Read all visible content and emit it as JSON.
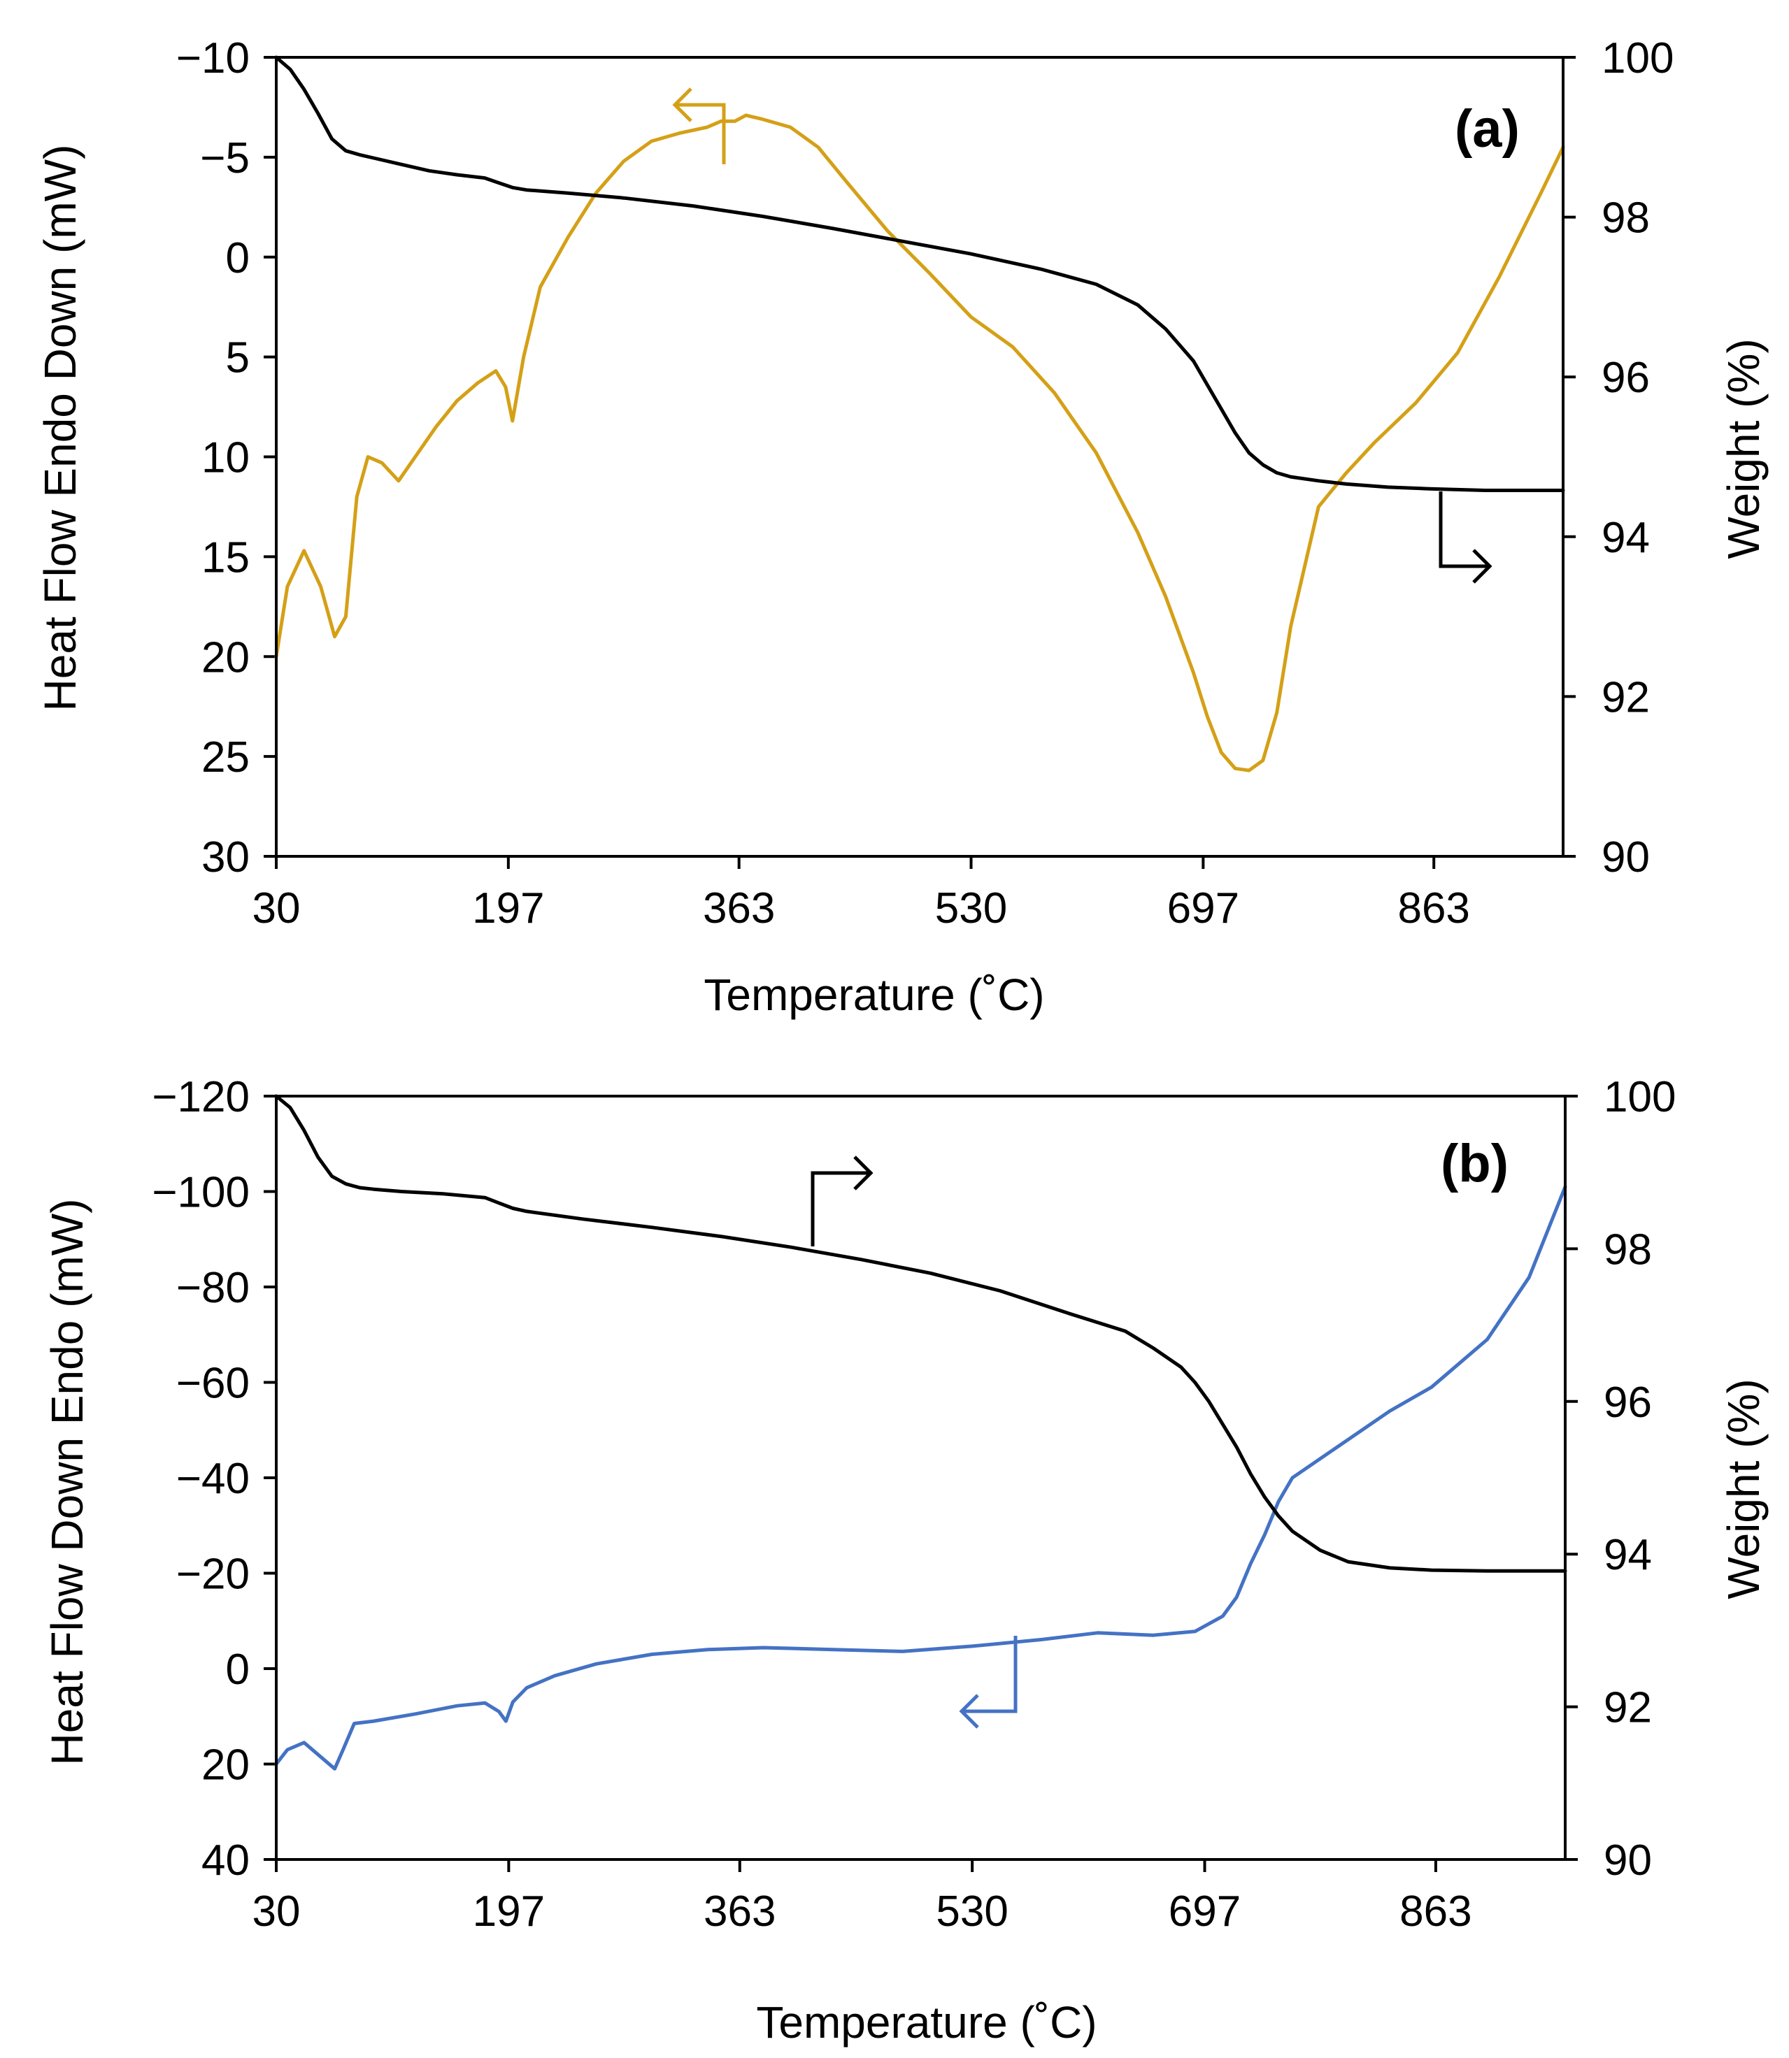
{
  "chart_data": [
    {
      "type": "line",
      "panel_label": "(a)",
      "xlabel": "Temperature (˚C)",
      "ylabel_left": "Heat Flow Endo Down (mW)",
      "ylabel_right": "Weight (%)",
      "xlim": [
        30,
        956
      ],
      "x_ticks": [
        "30",
        "197",
        "363",
        "530",
        "697",
        "863"
      ],
      "x_tick_values": [
        30,
        197,
        363,
        530,
        697,
        863
      ],
      "ylim_left": [
        -10,
        30
      ],
      "y_left_inverted": true,
      "y_left_ticks": [
        "−10",
        "−5",
        "0",
        "5",
        "10",
        "15",
        "20",
        "25",
        "30"
      ],
      "y_left_tick_values": [
        -10,
        -5,
        0,
        5,
        10,
        15,
        20,
        25,
        30
      ],
      "ylim_right": [
        90,
        100
      ],
      "y_right_ticks": [
        "90",
        "92",
        "94",
        "96",
        "98",
        "100"
      ],
      "y_right_tick_values": [
        90,
        92,
        94,
        96,
        98,
        100
      ],
      "series": [
        {
          "name": "Heat Flow",
          "axis": "left",
          "color": "#D4A017",
          "x": [
            30,
            38,
            50,
            62,
            72,
            80,
            88,
            96,
            106,
            118,
            130,
            145,
            160,
            175,
            188,
            195,
            200,
            208,
            220,
            240,
            260,
            280,
            300,
            320,
            340,
            350,
            360,
            368,
            380,
            400,
            420,
            440,
            470,
            500,
            530,
            560,
            590,
            620,
            650,
            670,
            690,
            700,
            710,
            720,
            730,
            740,
            750,
            760,
            780,
            800,
            820,
            850,
            880,
            910,
            940,
            956
          ],
          "y": [
            20,
            16.5,
            14.7,
            16.5,
            19,
            18,
            12,
            10,
            10.3,
            11.2,
            10,
            8.5,
            7.2,
            6.3,
            5.7,
            6.5,
            8.2,
            5,
            1.5,
            -1,
            -3.2,
            -4.8,
            -5.8,
            -6.2,
            -6.5,
            -6.8,
            -6.8,
            -7.1,
            -6.9,
            -6.5,
            -5.5,
            -3.8,
            -1.3,
            0.8,
            3,
            4.5,
            6.8,
            9.8,
            13.8,
            17,
            20.8,
            23,
            24.8,
            25.6,
            25.7,
            25.2,
            22.8,
            18.5,
            12.5,
            10.8,
            9.3,
            7.3,
            4.8,
            1,
            -3.2,
            -5.5
          ]
        },
        {
          "name": "Weight",
          "axis": "right",
          "color": "#000000",
          "x": [
            30,
            40,
            50,
            60,
            70,
            80,
            90,
            100,
            120,
            140,
            160,
            180,
            190,
            200,
            210,
            240,
            280,
            330,
            380,
            430,
            480,
            530,
            580,
            620,
            650,
            670,
            690,
            700,
            710,
            720,
            730,
            740,
            750,
            760,
            780,
            800,
            830,
            860,
            900,
            956
          ],
          "y": [
            100,
            99.85,
            99.6,
            99.3,
            98.98,
            98.83,
            98.78,
            98.74,
            98.66,
            98.58,
            98.53,
            98.49,
            98.43,
            98.37,
            98.34,
            98.3,
            98.24,
            98.14,
            98.01,
            97.86,
            97.7,
            97.54,
            97.35,
            97.16,
            96.9,
            96.6,
            96.2,
            95.9,
            95.6,
            95.3,
            95.05,
            94.9,
            94.8,
            94.75,
            94.7,
            94.66,
            94.62,
            94.6,
            94.58,
            94.58
          ]
        }
      ]
    },
    {
      "type": "line",
      "panel_label": "(b)",
      "xlabel": "Temperature (˚C)",
      "ylabel_left": "Heat Flow Down Endo (mW)",
      "ylabel_right": "Weight (%)",
      "xlim": [
        30,
        956
      ],
      "x_ticks": [
        "30",
        "197",
        "363",
        "530",
        "697",
        "863"
      ],
      "x_tick_values": [
        30,
        197,
        363,
        530,
        697,
        863
      ],
      "ylim_left": [
        -120,
        40
      ],
      "y_left_inverted": true,
      "y_left_ticks": [
        "−120",
        "−100",
        "−80",
        "−60",
        "−40",
        "−20",
        "0",
        "20",
        "40"
      ],
      "y_left_tick_values": [
        -120,
        -100,
        -80,
        -60,
        -40,
        -20,
        0,
        20,
        40
      ],
      "ylim_right": [
        90,
        100
      ],
      "y_right_ticks": [
        "90",
        "92",
        "94",
        "96",
        "98",
        "100"
      ],
      "y_right_tick_values": [
        90,
        92,
        94,
        96,
        98,
        100
      ],
      "series": [
        {
          "name": "Heat Flow",
          "axis": "left",
          "color": "#4472C4",
          "x": [
            30,
            38,
            50,
            62,
            72,
            78,
            86,
            100,
            130,
            160,
            180,
            190,
            195,
            200,
            210,
            230,
            260,
            300,
            340,
            380,
            430,
            480,
            530,
            580,
            620,
            660,
            690,
            710,
            720,
            730,
            740,
            750,
            760,
            780,
            800,
            830,
            860,
            900,
            930,
            956
          ],
          "y": [
            20,
            17,
            15.5,
            18.5,
            21,
            17,
            11.5,
            11,
            9.5,
            7.8,
            7.2,
            9,
            11,
            7,
            4,
            1.5,
            -1,
            -3,
            -4,
            -4.4,
            -4,
            -3.6,
            -4.7,
            -6.1,
            -7.5,
            -7,
            -7.8,
            -11,
            -15,
            -22,
            -28,
            -35,
            -40,
            -44,
            -48,
            -54,
            -59,
            -69,
            -82,
            -101
          ]
        },
        {
          "name": "Weight",
          "axis": "right",
          "color": "#000000",
          "x": [
            30,
            40,
            50,
            60,
            70,
            80,
            90,
            100,
            120,
            150,
            180,
            190,
            200,
            210,
            250,
            300,
            350,
            400,
            450,
            500,
            550,
            600,
            640,
            660,
            680,
            690,
            700,
            710,
            720,
            730,
            740,
            750,
            760,
            780,
            800,
            830,
            860,
            900,
            956
          ],
          "y": [
            100,
            99.85,
            99.55,
            99.2,
            98.95,
            98.85,
            98.8,
            98.78,
            98.75,
            98.72,
            98.67,
            98.6,
            98.53,
            98.49,
            98.39,
            98.28,
            98.16,
            98.02,
            97.86,
            97.68,
            97.45,
            97.15,
            96.92,
            96.7,
            96.45,
            96.25,
            96,
            95.7,
            95.4,
            95.05,
            94.75,
            94.5,
            94.3,
            94.05,
            93.9,
            93.82,
            93.79,
            93.78,
            93.78
          ]
        }
      ]
    }
  ]
}
